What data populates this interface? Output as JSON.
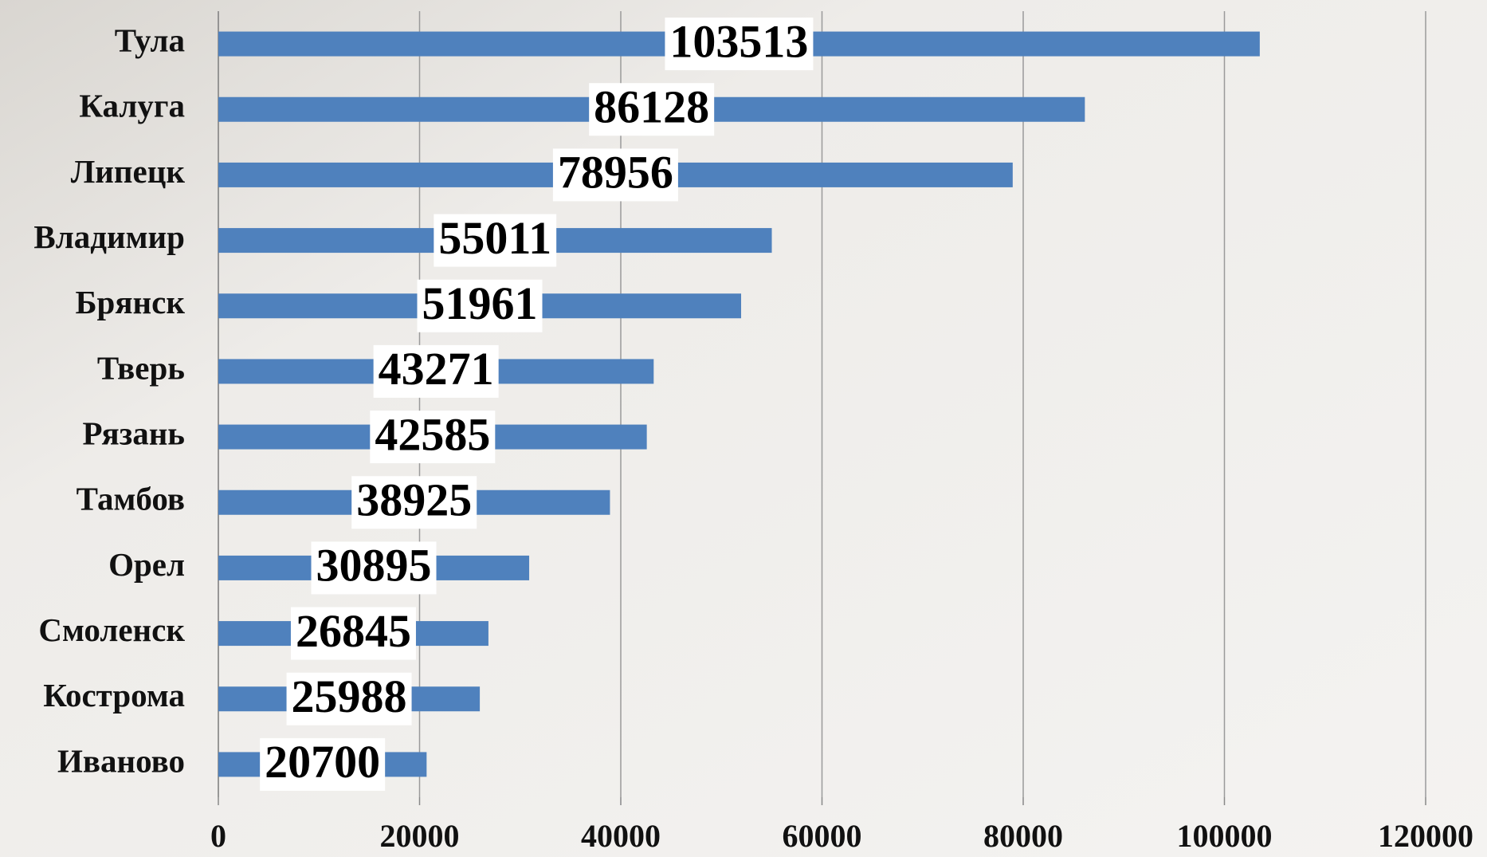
{
  "chart_data": {
    "type": "bar",
    "orientation": "horizontal",
    "categories": [
      "Тула",
      "Калуга",
      "Липецк",
      "Владимир",
      "Брянск",
      "Тверь",
      "Рязань",
      "Тамбов",
      "Орел",
      "Смоленск",
      "Кострома",
      "Иваново"
    ],
    "values": [
      103513,
      86128,
      78956,
      55011,
      51961,
      43271,
      42585,
      38925,
      30895,
      26845,
      25988,
      20700
    ],
    "color": "#4f81bd",
    "xlim": [
      0,
      120000
    ],
    "xticks": [
      0,
      20000,
      40000,
      60000,
      80000,
      100000,
      120000
    ],
    "grid": true
  }
}
